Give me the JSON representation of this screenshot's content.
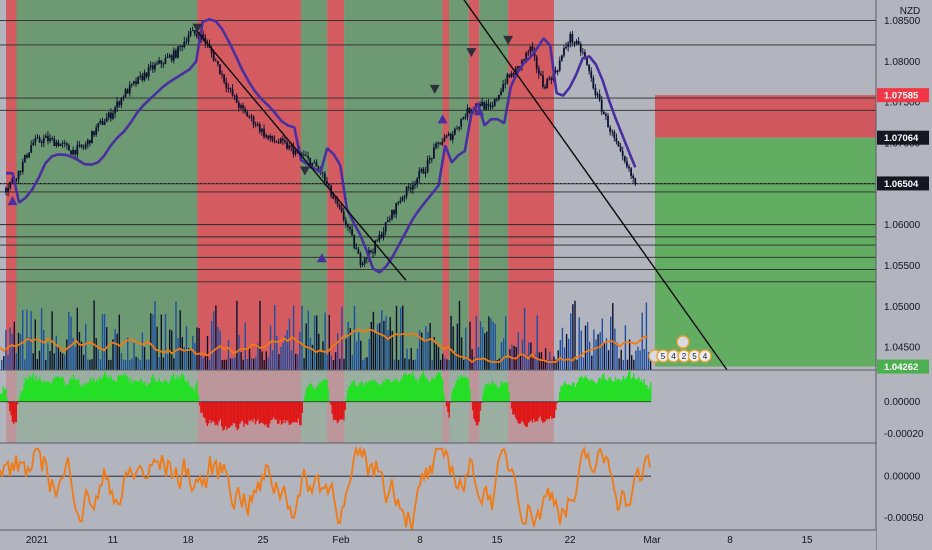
{
  "chart_data": {
    "type": "candlestick",
    "currency_label": "NZD",
    "x_tick_labels": [
      "2021",
      "11",
      "18",
      "25",
      "Feb",
      "8",
      "15",
      "22",
      "Mar",
      "8",
      "15"
    ],
    "y_axis_main": {
      "tick_labels": [
        "1.08500",
        "1.08000",
        "1.07500",
        "1.07000",
        "1.06500",
        "1.06000",
        "1.05500",
        "1.05000",
        "1.04500"
      ],
      "tick_values": [
        1.085,
        1.08,
        1.075,
        1.07,
        1.065,
        1.06,
        1.055,
        1.05,
        1.045
      ],
      "ylim": [
        1.0422,
        1.0875
      ]
    },
    "price_tags": [
      {
        "label": "1.07585",
        "value": 1.07585,
        "color": "#f23645",
        "text_color": "#ffffff"
      },
      {
        "label": "1.07064",
        "value": 1.07064,
        "color": "#131722",
        "text_color": "#ffffff"
      },
      {
        "label": "1.06504",
        "value": 1.06504,
        "color": "#131722",
        "text_color": "#ffffff"
      },
      {
        "label": "1.04262",
        "value": 1.04262,
        "color": "#4caf50",
        "text_color": "#ffffff"
      }
    ],
    "price_series": [
      {
        "t": 0,
        "price": 1.0645
      },
      {
        "t": 1,
        "price": 1.0665
      },
      {
        "t": 2,
        "price": 1.07
      },
      {
        "t": 3,
        "price": 1.0705
      },
      {
        "t": 4,
        "price": 1.07
      },
      {
        "t": 5,
        "price": 1.069
      },
      {
        "t": 6,
        "price": 1.0695
      },
      {
        "t": 7,
        "price": 1.072
      },
      {
        "t": 8,
        "price": 1.0735
      },
      {
        "t": 9,
        "price": 1.076
      },
      {
        "t": 10,
        "price": 1.0775
      },
      {
        "t": 11,
        "price": 1.079
      },
      {
        "t": 12,
        "price": 1.08
      },
      {
        "t": 13,
        "price": 1.081
      },
      {
        "t": 14,
        "price": 1.0835
      },
      {
        "t": 15,
        "price": 1.083
      },
      {
        "t": 16,
        "price": 1.08
      },
      {
        "t": 17,
        "price": 1.0765
      },
      {
        "t": 18,
        "price": 1.074
      },
      {
        "t": 19,
        "price": 1.0725
      },
      {
        "t": 20,
        "price": 1.0705
      },
      {
        "t": 21,
        "price": 1.07
      },
      {
        "t": 22,
        "price": 1.069
      },
      {
        "t": 23,
        "price": 1.068
      },
      {
        "t": 24,
        "price": 1.0665
      },
      {
        "t": 25,
        "price": 1.063
      },
      {
        "t": 26,
        "price": 1.06
      },
      {
        "t": 27,
        "price": 1.0555
      },
      {
        "t": 28,
        "price": 1.057
      },
      {
        "t": 29,
        "price": 1.06
      },
      {
        "t": 30,
        "price": 1.063
      },
      {
        "t": 31,
        "price": 1.065
      },
      {
        "t": 32,
        "price": 1.067
      },
      {
        "t": 33,
        "price": 1.07
      },
      {
        "t": 34,
        "price": 1.071
      },
      {
        "t": 35,
        "price": 1.0735
      },
      {
        "t": 36,
        "price": 1.075
      },
      {
        "t": 37,
        "price": 1.074
      },
      {
        "t": 38,
        "price": 1.0775
      },
      {
        "t": 39,
        "price": 1.079
      },
      {
        "t": 40,
        "price": 1.0815
      },
      {
        "t": 41,
        "price": 1.077
      },
      {
        "t": 42,
        "price": 1.079
      },
      {
        "t": 43,
        "price": 1.083
      },
      {
        "t": 44,
        "price": 1.081
      },
      {
        "t": 45,
        "price": 1.076
      },
      {
        "t": 46,
        "price": 1.072
      },
      {
        "t": 47,
        "price": 1.068
      },
      {
        "t": 48,
        "price": 1.065
      }
    ],
    "horizontal_levels": [
      1.085,
      1.082,
      1.0755,
      1.074,
      1.065,
      1.064,
      1.06,
      1.0585,
      1.0575,
      1.056,
      1.0545,
      1.053
    ],
    "dotted_level": 1.06504,
    "trend_lines": [
      {
        "from": {
          "t": 14.5,
          "price": 1.0838
        },
        "to": {
          "t": 30.5,
          "price": 1.0532
        }
      },
      {
        "from": {
          "t": 34.5,
          "price": 1.0885
        },
        "to": {
          "t": 55,
          "price": 1.0422
        }
      }
    ],
    "position": {
      "entry": 1.07064,
      "stop": 1.07585,
      "target": 1.04262
    },
    "zones": [
      {
        "from": 0,
        "to": 0.8,
        "color": "red"
      },
      {
        "from": 0.8,
        "to": 14.6,
        "color": "green"
      },
      {
        "from": 14.6,
        "to": 22.5,
        "color": "red"
      },
      {
        "from": 22.5,
        "to": 24.5,
        "color": "green"
      },
      {
        "from": 24.5,
        "to": 25.8,
        "color": "red"
      },
      {
        "from": 25.8,
        "to": 33.3,
        "color": "green"
      },
      {
        "from": 33.3,
        "to": 33.8,
        "color": "red"
      },
      {
        "from": 33.8,
        "to": 35.3,
        "color": "green"
      },
      {
        "from": 35.3,
        "to": 36.1,
        "color": "red"
      },
      {
        "from": 36.1,
        "to": 38.3,
        "color": "green"
      },
      {
        "from": 38.3,
        "to": 41.8,
        "color": "red"
      }
    ],
    "markers": [
      {
        "t": 0.5,
        "price": 1.063,
        "type": "buy"
      },
      {
        "t": 14.6,
        "price": 1.084,
        "type": "sell"
      },
      {
        "t": 22.8,
        "price": 1.0665,
        "type": "sell"
      },
      {
        "t": 24.1,
        "price": 1.056,
        "type": "buy"
      },
      {
        "t": 32.7,
        "price": 1.0765,
        "type": "sell"
      },
      {
        "t": 33.3,
        "price": 1.073,
        "type": "buy"
      },
      {
        "t": 35.5,
        "price": 1.081,
        "type": "sell"
      },
      {
        "t": 36.1,
        "price": 1.074,
        "type": "buy"
      },
      {
        "t": 38.3,
        "price": 1.0825,
        "type": "sell"
      }
    ],
    "event_badges": [
      "5",
      "4",
      "2",
      "5",
      "4"
    ],
    "osc1": {
      "tick_labels": [
        "0.00000",
        "-0.00020"
      ],
      "tick_values": [
        0,
        -0.0002
      ],
      "ylim": [
        -0.00026,
        0.0002
      ]
    },
    "osc2": {
      "tick_labels": [
        "0.00000",
        "-0.00050"
      ],
      "tick_values": [
        0,
        -0.0005
      ],
      "ylim": [
        -0.00065,
        0.0004
      ]
    },
    "colors": {
      "zone_red": "#d45c61",
      "zone_green": "#6d9a72",
      "candle": "#0b1030",
      "baseline": "#4a2fa0",
      "volume": "#1e4fa3",
      "osc_pos": "#22e022",
      "osc_neg": "#e01616",
      "osc_orange": "#f07a14",
      "tp_zone": "#62ad62",
      "sl_zone": "#d2585f"
    }
  }
}
